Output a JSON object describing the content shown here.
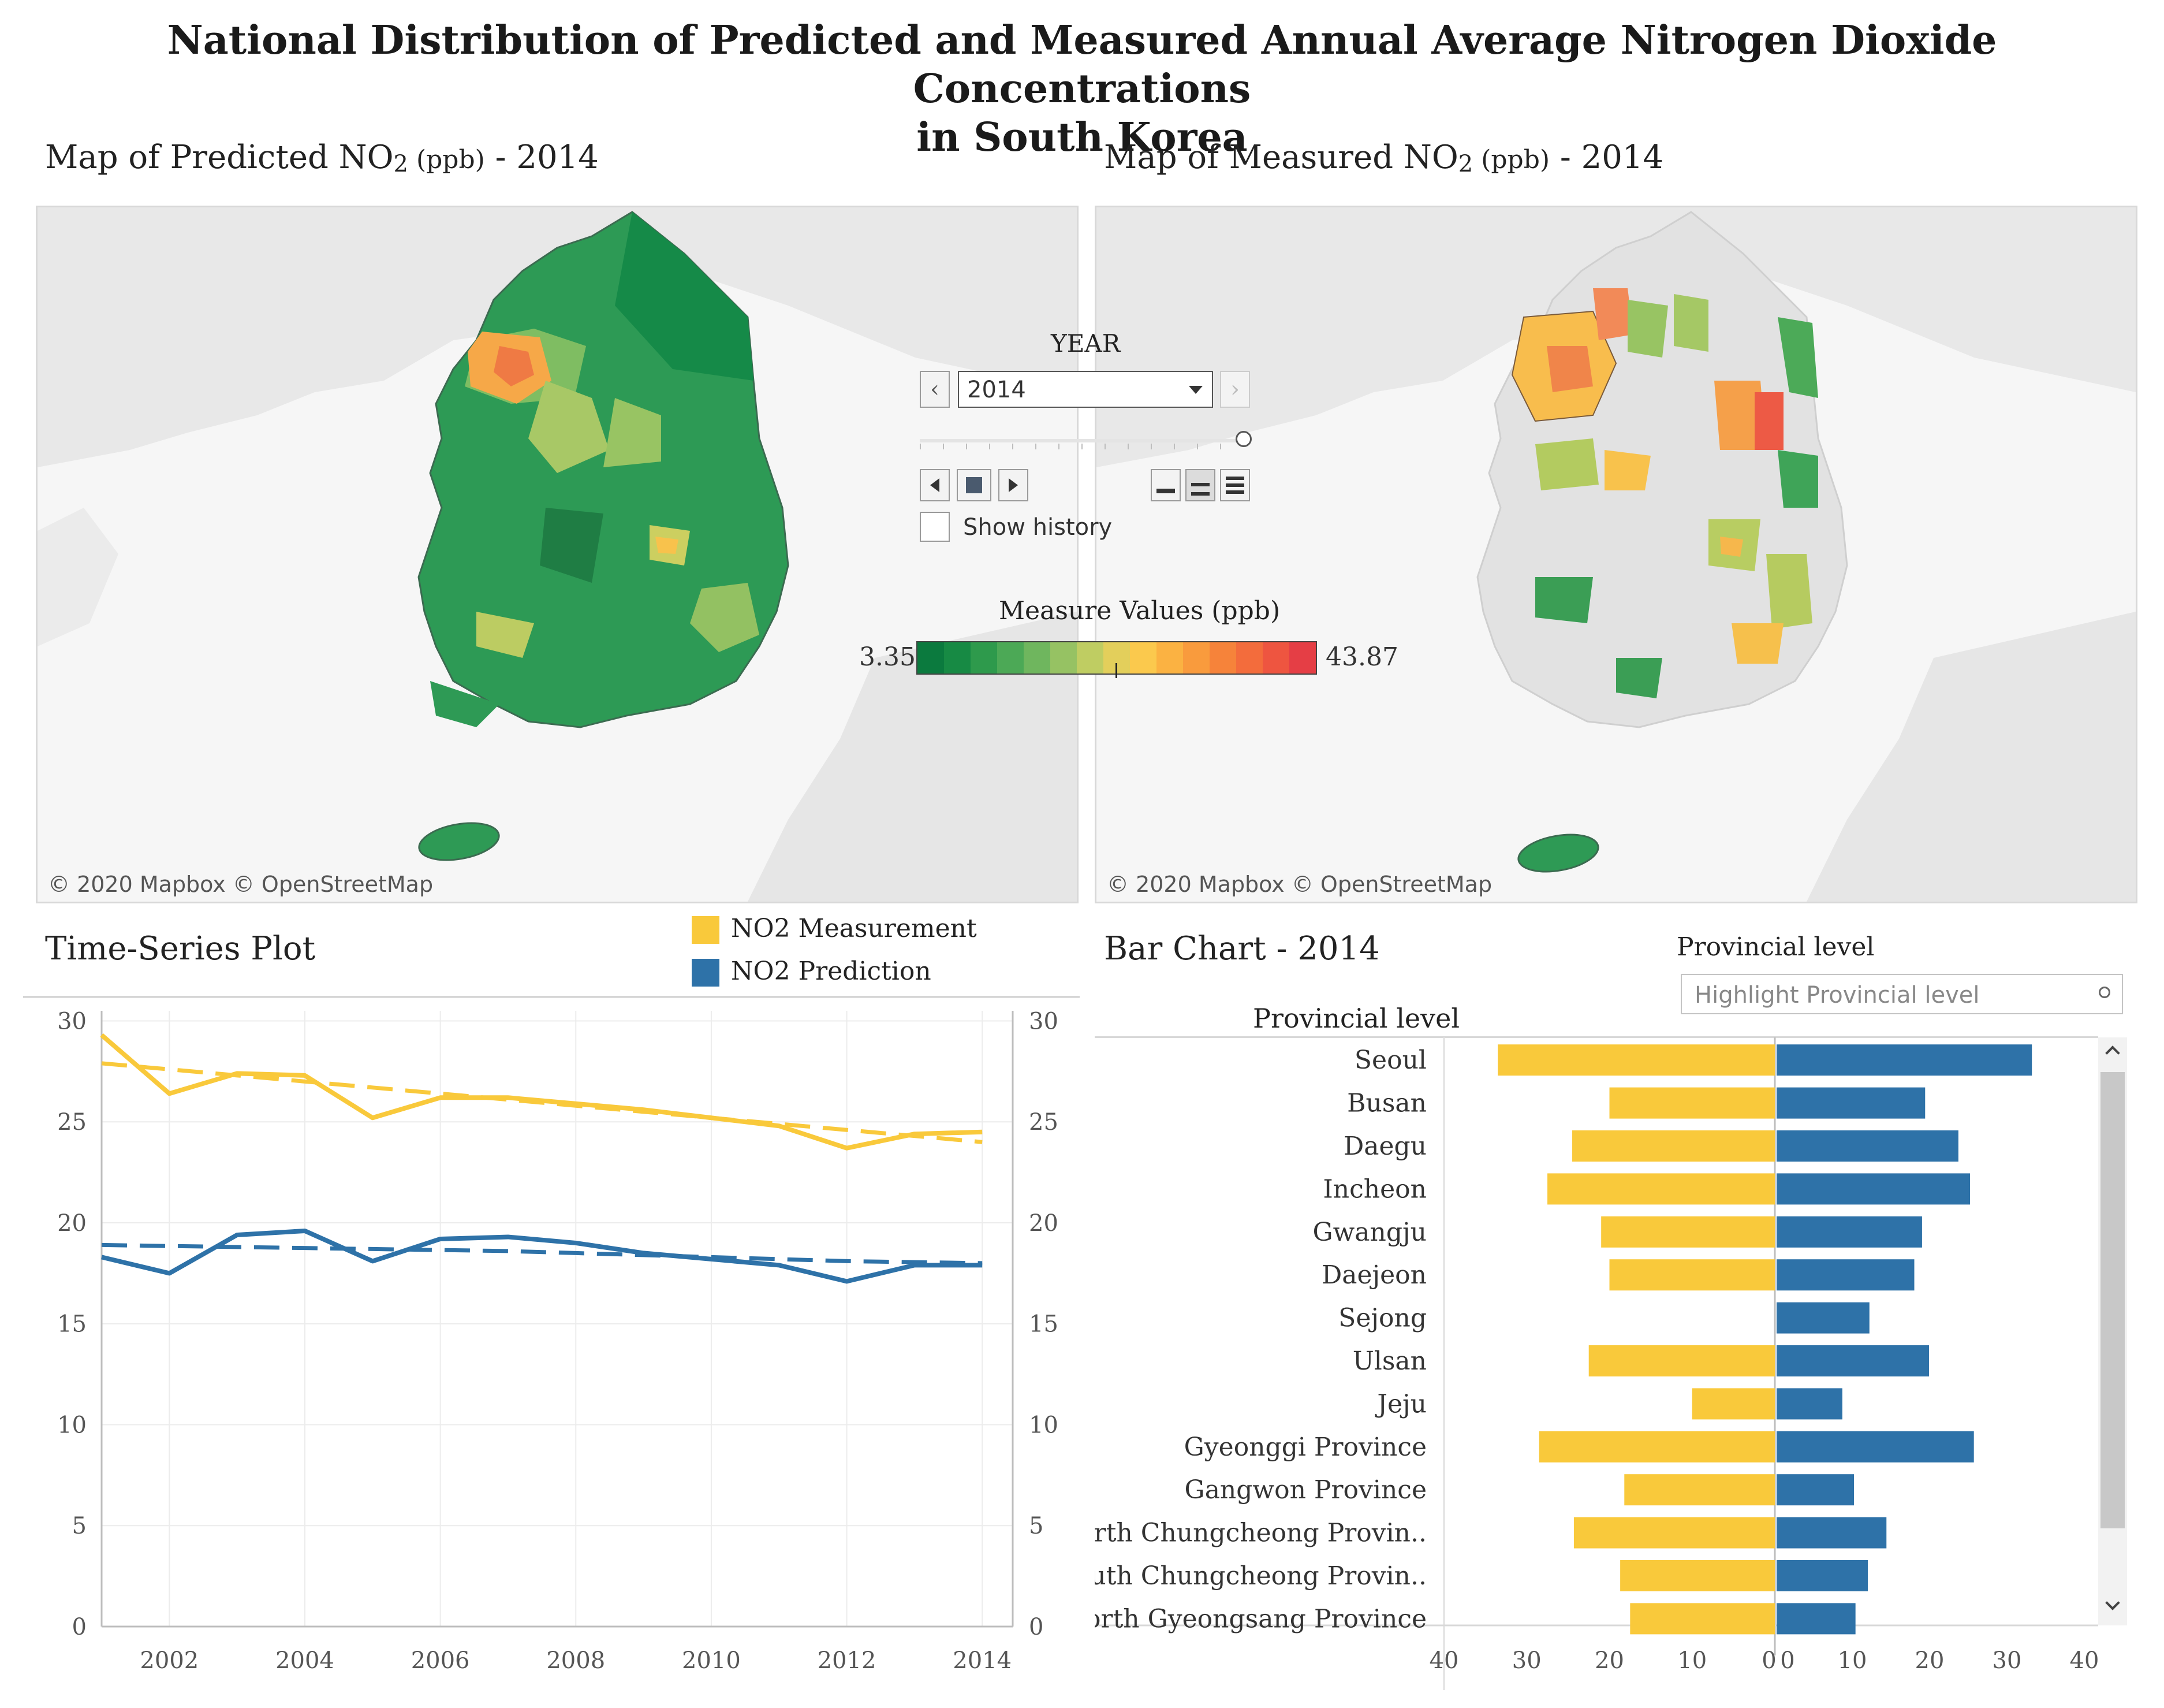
{
  "title_line1": "National Distribution of Predicted and Measured Annual Average Nitrogen Dioxide Concentrations",
  "title_line2": "in South Korea",
  "predicted_map": {
    "title_main": "Map of Predicted NO",
    "title_sub": "2",
    "title_unit": " (ppb)",
    "title_year": "  - 2014",
    "copyright": "© 2020 Mapbox © OpenStreetMap"
  },
  "measured_map": {
    "title_main": "Map of Measured NO",
    "title_sub": "2",
    "title_unit": " (ppb)",
    "title_year": " - 2014",
    "copyright": "© 2020 Mapbox © OpenStreetMap"
  },
  "year_control": {
    "label": "YEAR",
    "selected": "2014",
    "prev_icon": "‹",
    "next_icon": "›",
    "show_history_label": "Show history",
    "show_history_checked": false,
    "slider_position": 1.0
  },
  "color_legend": {
    "title": "Measure Values (ppb)",
    "min": "3.35",
    "max": "43.87",
    "colors": [
      "#0b7a3e",
      "#178a44",
      "#2e9a4c",
      "#4ca956",
      "#6fb65e",
      "#96c263",
      "#bfcd62",
      "#e3cf5b",
      "#fbc94d",
      "#fbb242",
      "#f99b3d",
      "#f6833a",
      "#f36c3c",
      "#ee5540",
      "#e53e45"
    ]
  },
  "time_series": {
    "title": "Time-Series Plot",
    "legend": [
      {
        "label": "NO2 Measurement",
        "color": "#f9c93b"
      },
      {
        "label": "NO2 Prediction",
        "color": "#2e72a8"
      }
    ],
    "chart_data": {
      "type": "line",
      "title": "Time-Series Plot",
      "x": [
        2001,
        2002,
        2003,
        2004,
        2005,
        2006,
        2007,
        2008,
        2009,
        2010,
        2011,
        2012,
        2013,
        2014
      ],
      "series": [
        {
          "name": "NO2 Measurement",
          "color": "#f9c93b",
          "values": [
            29.3,
            26.4,
            27.4,
            27.3,
            25.2,
            26.2,
            26.2,
            25.9,
            25.6,
            25.2,
            24.8,
            23.7,
            24.4,
            24.5
          ]
        },
        {
          "name": "NO2 Measurement trend",
          "color": "#f9c93b",
          "dashed": true,
          "values": [
            27.9,
            27.6,
            27.3,
            27.0,
            26.7,
            26.4,
            26.1,
            25.8,
            25.5,
            25.2,
            24.9,
            24.6,
            24.3,
            24.0
          ]
        },
        {
          "name": "NO2 Prediction",
          "color": "#2e72a8",
          "values": [
            18.3,
            17.5,
            19.4,
            19.6,
            18.1,
            19.2,
            19.3,
            19.0,
            18.5,
            18.2,
            17.9,
            17.1,
            17.9,
            17.9
          ]
        },
        {
          "name": "NO2 Prediction trend",
          "color": "#2e72a8",
          "dashed": true,
          "values": [
            18.9,
            18.85,
            18.8,
            18.75,
            18.7,
            18.65,
            18.6,
            18.5,
            18.4,
            18.3,
            18.2,
            18.1,
            18.05,
            18.0
          ]
        }
      ],
      "xticks": [
        2002,
        2004,
        2006,
        2008,
        2010,
        2012,
        2014
      ],
      "yticks": [
        0,
        5,
        10,
        15,
        20,
        25,
        30
      ],
      "xlim": [
        2001,
        2014.45
      ],
      "ylim": [
        0,
        30.5
      ],
      "xlabel": "",
      "ylabel": ""
    }
  },
  "bar_chart": {
    "title": "Bar Chart - 2014",
    "filter_label": "Provincial level",
    "filter_placeholder": "Highlight Provincial level",
    "axis_header": "Provincial level",
    "chart_data": {
      "type": "bar",
      "orientation": "horizontal-diverging",
      "categories": [
        "Seoul",
        "Busan",
        "Daegu",
        "Incheon",
        "Gwangju",
        "Daejeon",
        "Sejong",
        "Ulsan",
        "Jeju",
        "Gyeonggi Province",
        "Gangwon Province",
        "North Chungcheong Provin..",
        "South Chungcheong Provin..",
        "North Gyeongsang Province"
      ],
      "series": [
        {
          "name": "NO2 Measurement",
          "color": "#f9c93b",
          "values": [
            33.5,
            20.0,
            24.5,
            27.5,
            21.0,
            20.0,
            0,
            22.5,
            10.0,
            28.5,
            18.2,
            24.3,
            18.7,
            17.5
          ]
        },
        {
          "name": "NO2 Prediction",
          "color": "#2e72a8",
          "values": [
            33.0,
            19.2,
            23.5,
            25.0,
            18.8,
            17.8,
            12.0,
            19.7,
            8.5,
            25.5,
            10.0,
            14.2,
            11.8,
            10.2
          ]
        }
      ],
      "left_ticks": [
        40,
        30,
        20,
        10,
        0
      ],
      "right_ticks": [
        0,
        10,
        20,
        30,
        40
      ],
      "xlim": [
        0,
        40
      ]
    }
  }
}
